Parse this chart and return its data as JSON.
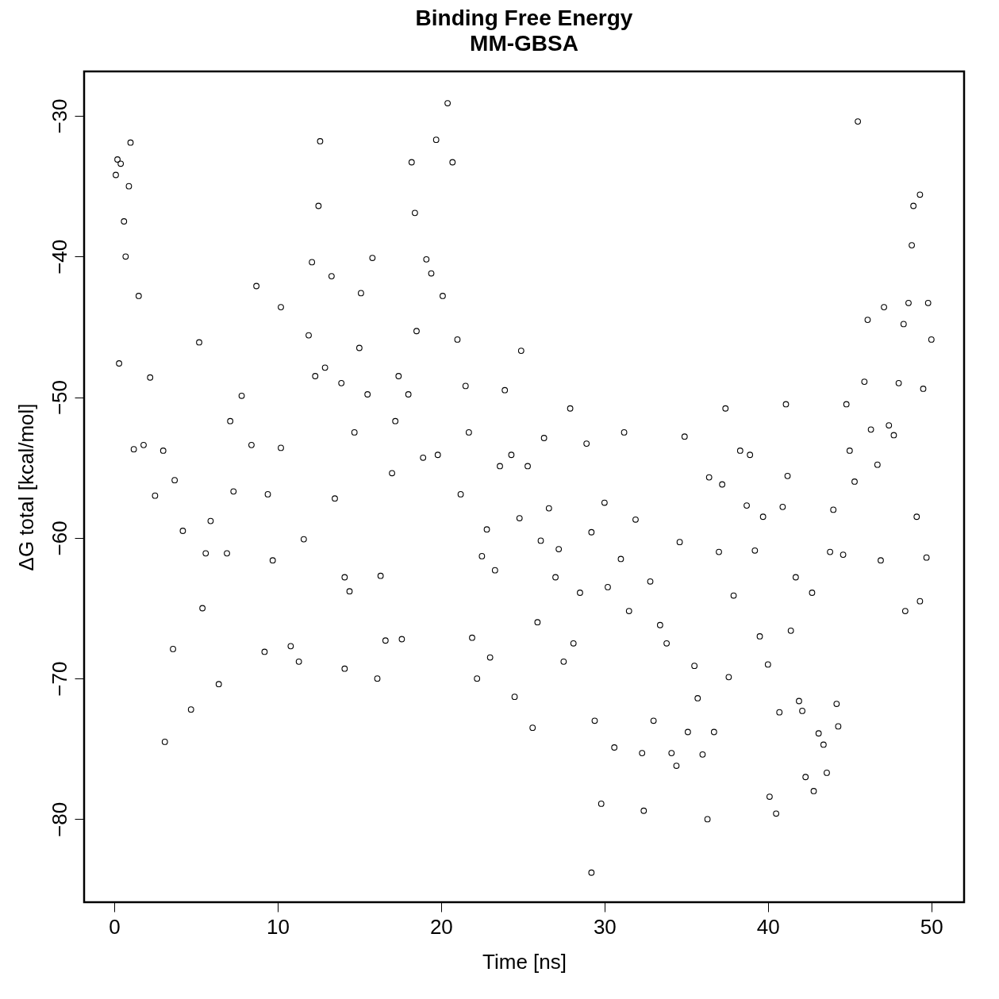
{
  "chart_data": {
    "type": "scatter",
    "title": "Binding Free Energy",
    "subtitle": "MM-GBSA",
    "xlabel": "Time [ns]",
    "ylabel": "ΔG total [kcal/mol]",
    "xlim": [
      -1.84,
      52.0
    ],
    "ylim": [
      -85.9,
      -26.84
    ],
    "xticks": [
      0,
      10,
      20,
      30,
      40,
      50
    ],
    "yticks": [
      -80,
      -70,
      -60,
      -50,
      -40,
      -30
    ],
    "grid": false,
    "legend": false,
    "marker": "circle",
    "series": [
      {
        "color": "#000000",
        "x": [
          0.1,
          0.2,
          0.4,
          0.3,
          0.6,
          0.9,
          1.0,
          0.7,
          1.2,
          1.5,
          1.8,
          2.2,
          2.5,
          3.0,
          3.1,
          3.6,
          3.7,
          4.2,
          4.7,
          5.2,
          5.4,
          5.6,
          5.9,
          6.4,
          6.9,
          7.1,
          7.3,
          7.8,
          8.4,
          8.7,
          9.2,
          9.4,
          9.7,
          10.2,
          10.2,
          10.8,
          11.3,
          11.6,
          11.9,
          12.1,
          12.3,
          12.6,
          12.5,
          12.9,
          13.3,
          13.5,
          13.9,
          14.1,
          14.1,
          14.4,
          14.7,
          15.0,
          15.1,
          15.5,
          15.8,
          16.1,
          16.3,
          16.6,
          17.0,
          17.2,
          17.4,
          17.6,
          18.0,
          18.2,
          18.4,
          18.5,
          18.9,
          19.1,
          19.4,
          19.7,
          19.8,
          20.1,
          20.4,
          20.7,
          21.0,
          21.2,
          21.5,
          21.7,
          21.9,
          22.2,
          22.5,
          22.8,
          23.0,
          23.3,
          23.6,
          23.9,
          24.3,
          24.5,
          24.8,
          24.9,
          25.3,
          25.6,
          25.9,
          26.1,
          26.3,
          26.6,
          27.0,
          27.2,
          27.5,
          27.9,
          28.1,
          28.5,
          28.9,
          29.2,
          29.4,
          29.2,
          29.8,
          30.0,
          30.2,
          30.6,
          31.0,
          31.2,
          31.5,
          31.9,
          32.3,
          32.4,
          32.8,
          33.0,
          33.4,
          33.8,
          34.1,
          34.4,
          34.6,
          34.9,
          35.1,
          35.5,
          35.7,
          36.0,
          36.3,
          36.4,
          36.7,
          37.0,
          37.2,
          37.4,
          37.6,
          37.9,
          38.3,
          38.7,
          38.9,
          39.2,
          39.5,
          39.7,
          40.0,
          40.1,
          40.5,
          40.7,
          40.9,
          41.1,
          41.2,
          41.4,
          41.7,
          41.9,
          42.1,
          42.3,
          42.7,
          42.8,
          43.1,
          43.4,
          43.6,
          43.8,
          44.0,
          44.2,
          44.3,
          44.6,
          44.8,
          45.0,
          45.3,
          45.5,
          45.9,
          46.1,
          46.3,
          46.7,
          46.9,
          47.1,
          47.4,
          47.7,
          48.0,
          48.3,
          48.4,
          48.6,
          48.8,
          48.9,
          49.1,
          49.3,
          49.3,
          49.5,
          49.7,
          49.8,
          50.0
        ],
        "values": [
          -34.2,
          -33.1,
          -33.4,
          -47.6,
          -37.5,
          -35.0,
          -31.9,
          -40.0,
          -53.7,
          -42.8,
          -53.4,
          -48.6,
          -57.0,
          -53.8,
          -74.5,
          -67.9,
          -55.9,
          -59.5,
          -72.2,
          -46.1,
          -65.0,
          -61.1,
          -58.8,
          -70.4,
          -61.1,
          -51.7,
          -56.7,
          -49.9,
          -53.4,
          -42.1,
          -68.1,
          -56.9,
          -61.6,
          -43.6,
          -53.6,
          -67.7,
          -68.8,
          -60.1,
          -45.6,
          -40.4,
          -48.5,
          -31.8,
          -36.4,
          -47.9,
          -41.4,
          -57.2,
          -49.0,
          -62.8,
          -69.3,
          -63.8,
          -52.5,
          -46.5,
          -42.6,
          -49.8,
          -40.1,
          -70.0,
          -62.7,
          -67.3,
          -55.4,
          -51.7,
          -48.5,
          -67.2,
          -49.8,
          -33.3,
          -36.9,
          -45.3,
          -54.3,
          -40.2,
          -41.2,
          -31.7,
          -54.1,
          -42.8,
          -29.1,
          -33.3,
          -45.9,
          -56.9,
          -49.2,
          -52.5,
          -67.1,
          -70.0,
          -61.3,
          -59.4,
          -68.5,
          -62.3,
          -54.9,
          -49.5,
          -54.1,
          -71.3,
          -58.6,
          -46.7,
          -54.9,
          -73.5,
          -66.0,
          -60.2,
          -52.9,
          -57.9,
          -62.8,
          -60.8,
          -68.8,
          -50.8,
          -67.5,
          -63.9,
          -53.3,
          -59.6,
          -73.0,
          -83.8,
          -78.9,
          -57.5,
          -63.5,
          -74.9,
          -61.5,
          -52.5,
          -65.2,
          -58.7,
          -75.3,
          -79.4,
          -63.1,
          -73.0,
          -66.2,
          -67.5,
          -75.3,
          -76.2,
          -60.3,
          -52.8,
          -73.8,
          -69.1,
          -71.4,
          -75.4,
          -80.0,
          -55.7,
          -73.8,
          -61.0,
          -56.2,
          -50.8,
          -69.9,
          -64.1,
          -53.8,
          -57.7,
          -54.1,
          -60.9,
          -67.0,
          -58.5,
          -69.0,
          -78.4,
          -79.6,
          -72.4,
          -57.8,
          -50.5,
          -55.6,
          -66.6,
          -62.8,
          -71.6,
          -72.3,
          -77.0,
          -63.9,
          -78.0,
          -73.9,
          -74.7,
          -76.7,
          -61.0,
          -58.0,
          -71.8,
          -73.4,
          -61.2,
          -50.5,
          -53.8,
          -56.0,
          -30.4,
          -48.9,
          -44.5,
          -52.3,
          -54.8,
          -61.6,
          -43.6,
          -52.0,
          -52.7,
          -49.0,
          -44.8,
          -65.2,
          -43.3,
          -39.2,
          -36.4,
          -58.5,
          -64.5,
          -35.6,
          -49.4,
          -61.4,
          -43.3,
          -45.9
        ]
      }
    ]
  }
}
